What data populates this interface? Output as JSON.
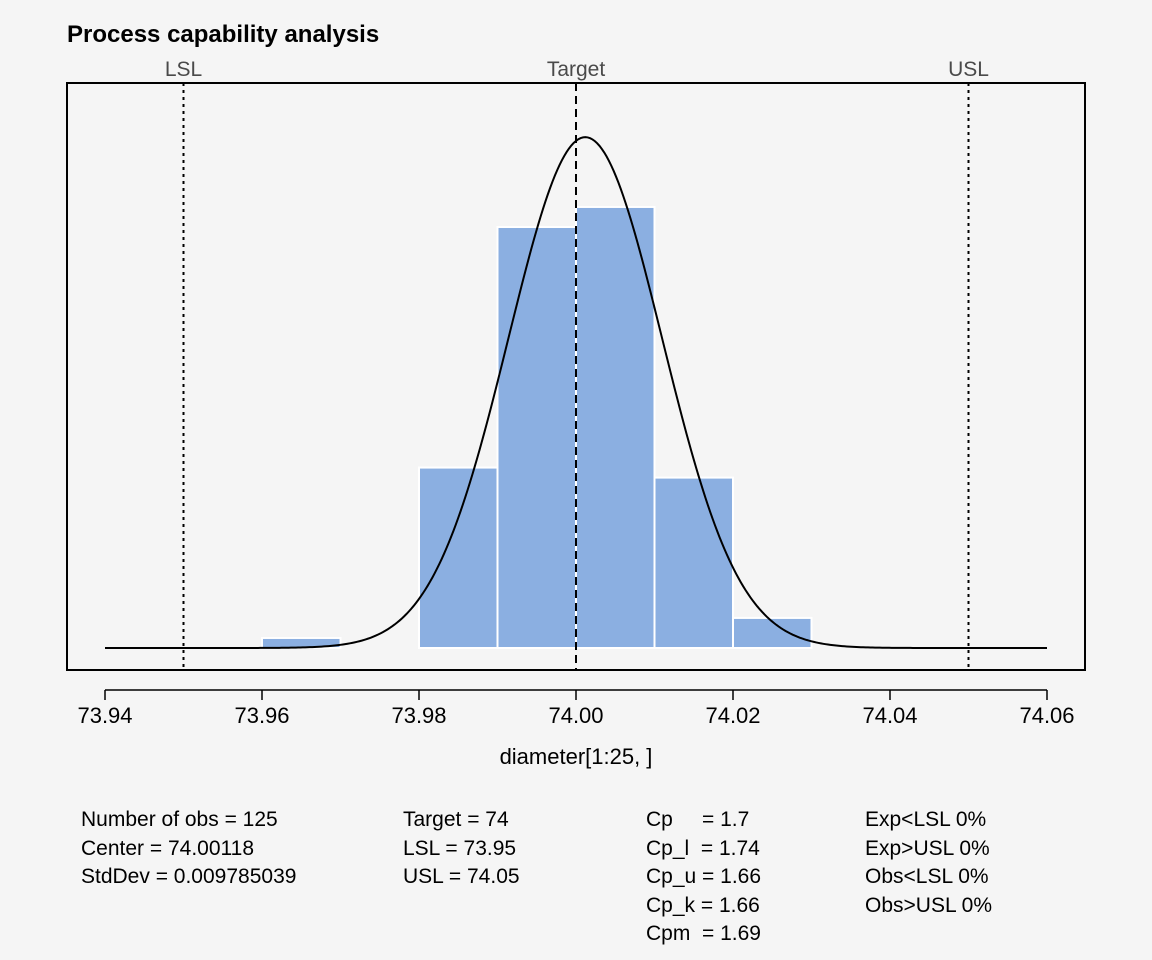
{
  "chart_data": {
    "type": "bar",
    "title": "Process capability analysis",
    "xlabel": "diameter[1:25, ]",
    "ylabel": "",
    "xlim": [
      73.94,
      74.06
    ],
    "x_ticks": [
      "73.94",
      "73.96",
      "73.98",
      "74.00",
      "74.02",
      "74.04",
      "74.06"
    ],
    "x_tick_values": [
      73.94,
      73.96,
      73.98,
      74.0,
      74.02,
      74.04,
      74.06
    ],
    "bins": [
      {
        "start": 73.96,
        "end": 73.97,
        "density": 0.8
      },
      {
        "start": 73.97,
        "end": 73.98,
        "density": 0.0
      },
      {
        "start": 73.98,
        "end": 73.99,
        "density": 14.4
      },
      {
        "start": 73.99,
        "end": 74.0,
        "density": 33.6
      },
      {
        "start": 74.0,
        "end": 74.01,
        "density": 35.2
      },
      {
        "start": 74.01,
        "end": 74.02,
        "density": 13.6
      },
      {
        "start": 74.02,
        "end": 74.03,
        "density": 2.4
      }
    ],
    "curve": {
      "type": "normal",
      "mean": 74.00118,
      "sd": 0.009785039
    },
    "spec_lines": [
      {
        "label": "LSL",
        "value": 73.95,
        "style": "dotted"
      },
      {
        "label": "Target",
        "value": 74.0,
        "style": "dashed"
      },
      {
        "label": "USL",
        "value": 74.05,
        "style": "dotted"
      }
    ],
    "bar_color": "#8BAFE1",
    "grid": false
  },
  "stats": {
    "col1": [
      "Number of obs = 125",
      "Center = 74.00118",
      "StdDev = 0.009785039"
    ],
    "col2": [
      "Target = 74",
      "LSL = 73.95",
      "USL = 74.05"
    ],
    "col3": [
      "Cp     = 1.7",
      "Cp_l  = 1.74",
      "Cp_u = 1.66",
      "Cp_k = 1.66",
      "Cpm  = 1.69"
    ],
    "col4": [
      "Exp<LSL 0%",
      "Exp>USL 0%",
      "Obs<LSL 0%",
      "Obs>USL 0%"
    ]
  }
}
